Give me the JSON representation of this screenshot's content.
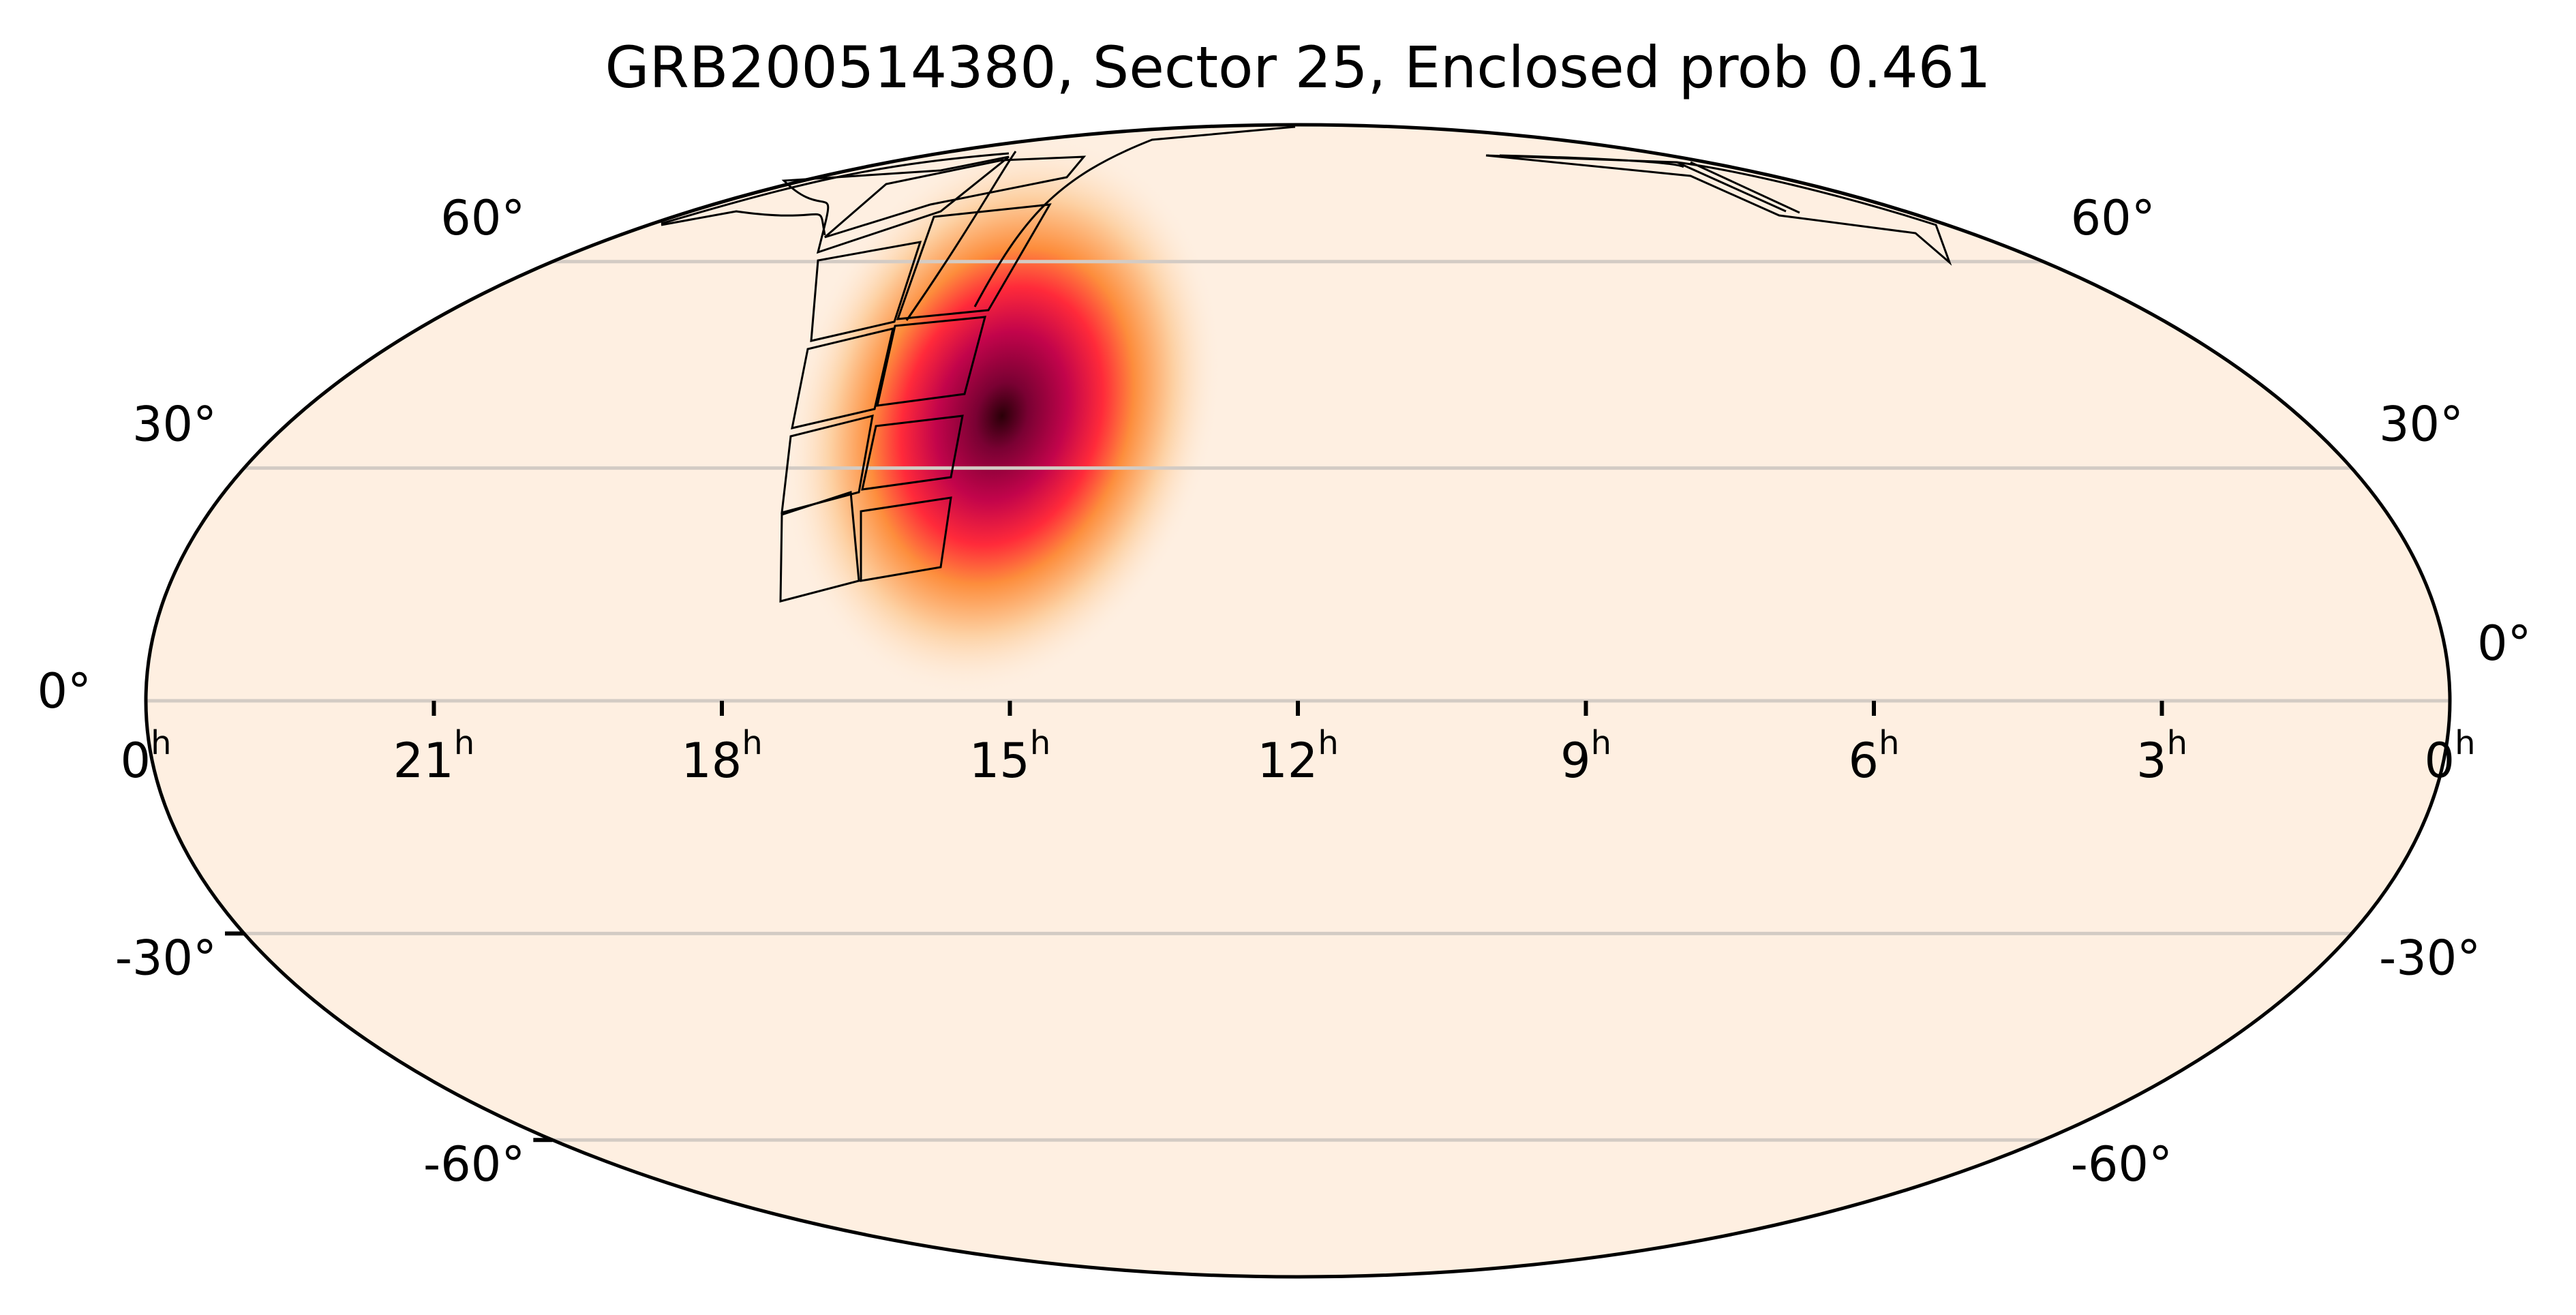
{
  "chart_data": {
    "type": "heatmap",
    "projection": "mollweide",
    "title": "GRB200514380, Sector 25, Enclosed prob 0.461",
    "xlabel": "",
    "ylabel": "",
    "grid": true,
    "legend": null,
    "x_ticks": [
      "0h",
      "21h",
      "18h",
      "15h",
      "12h",
      "9h",
      "6h",
      "3h",
      "0h"
    ],
    "x_tick_ra_hours": [
      24,
      21,
      18,
      15,
      12,
      9,
      6,
      3,
      0
    ],
    "y_ticks_left": [
      "60°",
      "30°",
      "0°",
      "-30°",
      "-60°"
    ],
    "y_ticks_right": [
      "60°",
      "30°",
      "0°",
      "-30°",
      "-60°"
    ],
    "y_tick_values": [
      60,
      30,
      0,
      -30,
      -60
    ],
    "xlim_ra_hours": [
      24,
      0
    ],
    "ylim_dec_deg": [
      -90,
      90
    ],
    "probability_peak": {
      "ra_hours": 14.7,
      "dec_deg": 34,
      "sigma_ra_deg": 9,
      "sigma_dec_deg": 14
    },
    "colormap": [
      "#fdeee0",
      "#fdd0a2",
      "#fd8d3c",
      "#ff2a3a",
      "#c2044b",
      "#7a0133",
      "#2a0008"
    ],
    "enclosed_probability": 0.461,
    "sector": 25,
    "event": "GRB200514380"
  },
  "title": "GRB200514380, Sector 25, Enclosed prob 0.461",
  "colors": {
    "background_fill": "#feefe1",
    "grid": "#d3cbc4",
    "outline": "#000000"
  }
}
